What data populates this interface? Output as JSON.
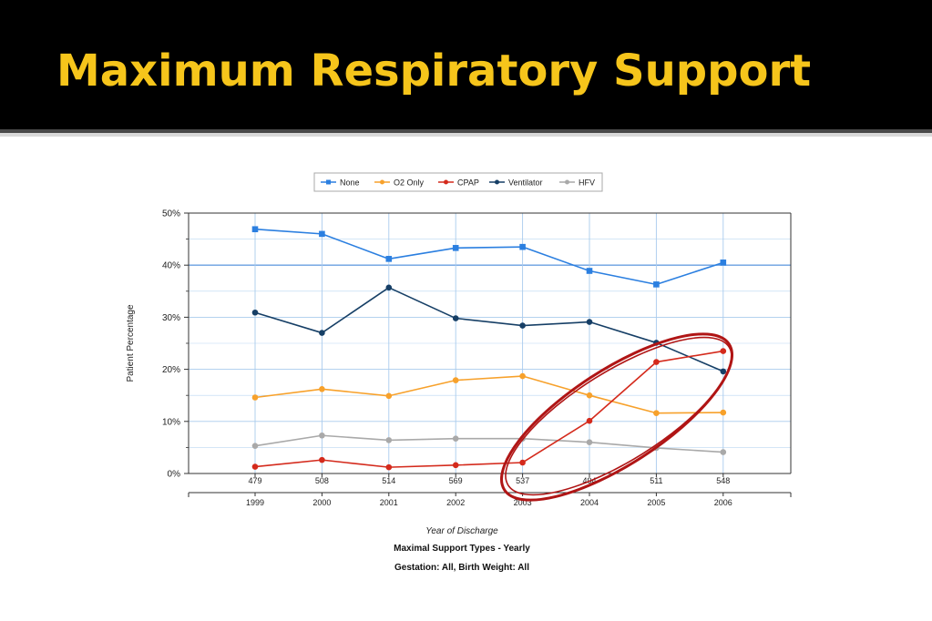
{
  "slide": {
    "title": "Maximum Respiratory Support"
  },
  "colors": {
    "header_bg": "#000000",
    "title": "#f6c51b",
    "grid": "#a9cbed",
    "highlight_ring": "#b01515"
  },
  "chart_data": {
    "type": "line",
    "categories": [
      "1999",
      "2000",
      "2001",
      "2002",
      "2003",
      "2004",
      "2005",
      "2006"
    ],
    "patient_counts": [
      "479",
      "508",
      "514",
      "569",
      "537",
      "494",
      "511",
      "548"
    ],
    "ylabel": "Patient Percentage",
    "xlabel": "Year of Discharge",
    "caption_line1": "Maximal Support Types - Yearly",
    "caption_line2": "Gestation: All, Birth Weight: All",
    "ylim": [
      0,
      50
    ],
    "yticks": [
      0,
      10,
      20,
      30,
      40,
      50
    ],
    "ytick_labels": [
      "0%",
      "10%",
      "20%",
      "30%",
      "40%",
      "50%"
    ],
    "grid": true,
    "legend_position": "top-center",
    "series": [
      {
        "name": "None",
        "color": "#2b7fe0",
        "marker": "square",
        "values": [
          46.9,
          46.0,
          41.2,
          43.3,
          43.5,
          38.9,
          36.3,
          40.5
        ]
      },
      {
        "name": "O2 Only",
        "color": "#f7a12b",
        "marker": "circle",
        "values": [
          14.6,
          16.2,
          14.9,
          17.9,
          18.7,
          15.0,
          11.6,
          11.7
        ]
      },
      {
        "name": "CPAP",
        "color": "#d42a1c",
        "marker": "circle",
        "values": [
          1.3,
          2.6,
          1.2,
          1.6,
          2.1,
          10.1,
          21.4,
          23.5
        ]
      },
      {
        "name": "Ventilator",
        "color": "#163f66",
        "marker": "circle",
        "values": [
          30.9,
          27.0,
          35.7,
          29.8,
          28.4,
          29.1,
          25.1,
          19.6
        ]
      },
      {
        "name": "HFV",
        "color": "#a9a9a9",
        "marker": "circle",
        "values": [
          5.3,
          7.3,
          6.4,
          6.7,
          6.7,
          6.0,
          4.9,
          4.1
        ]
      }
    ]
  }
}
